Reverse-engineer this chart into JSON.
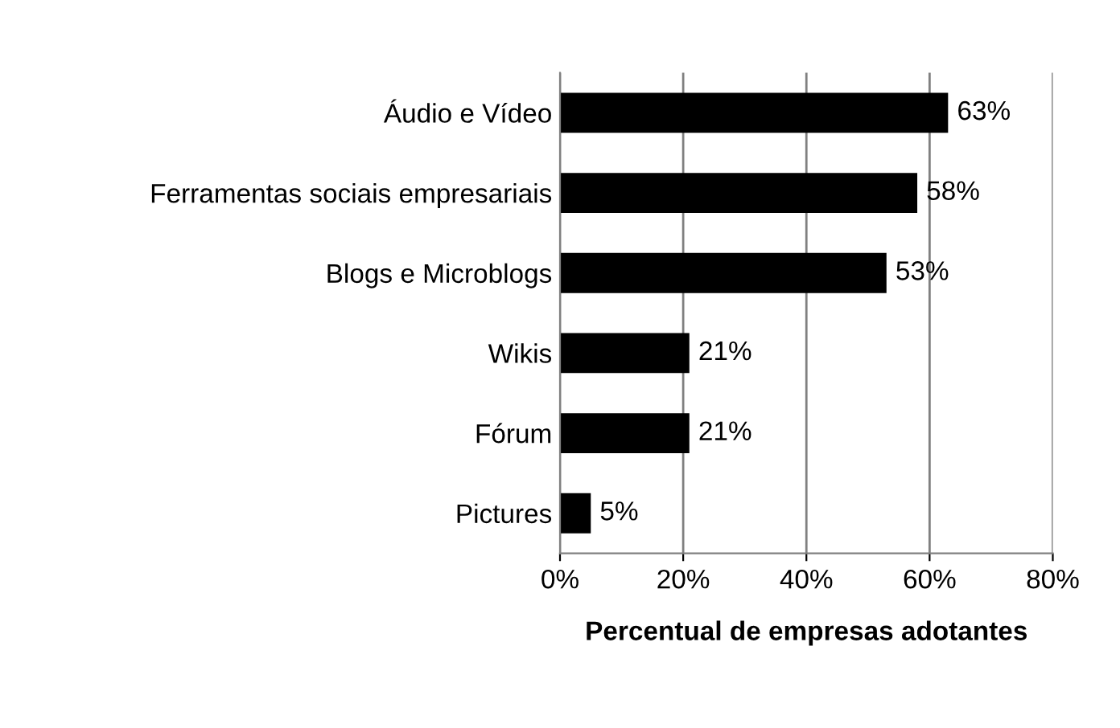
{
  "chart_data": {
    "type": "bar",
    "orientation": "horizontal",
    "xlabel": "Percentual de empresas adotantes",
    "categories": [
      "Áudio e Vídeo",
      "Ferramentas sociais empresariais",
      "Blogs e Microblogs",
      "Wikis",
      "Fórum",
      "Pictures"
    ],
    "values": [
      63,
      58,
      53,
      21,
      21,
      5
    ],
    "value_labels": [
      "63%",
      "58%",
      "53%",
      "21%",
      "21%",
      "5%"
    ],
    "color": "#000000",
    "xlim": [
      0,
      80
    ],
    "xticks": [
      {
        "value": 0,
        "label": "0%"
      },
      {
        "value": 20,
        "label": "20%"
      },
      {
        "value": 40,
        "label": "40%"
      },
      {
        "value": 60,
        "label": "60%"
      },
      {
        "value": 80,
        "label": "80%"
      }
    ],
    "grid": "x"
  }
}
